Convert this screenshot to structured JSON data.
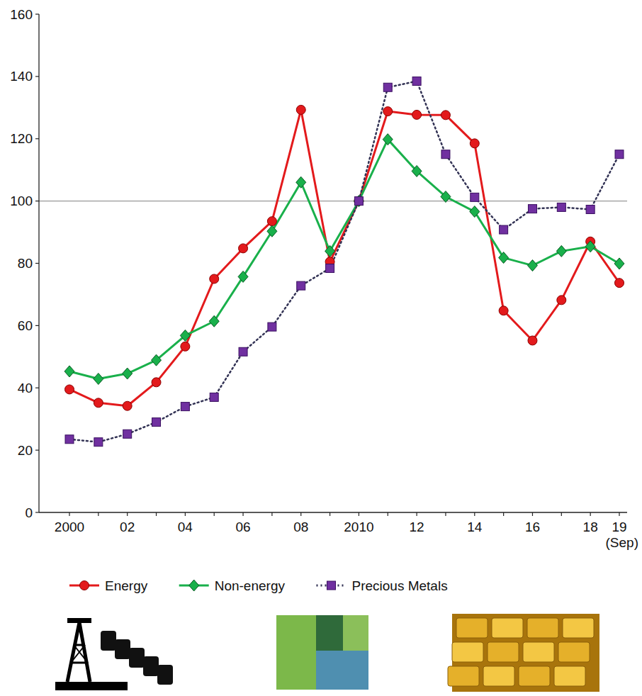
{
  "chart_data": {
    "type": "line",
    "categories": [
      "2000",
      null,
      "02",
      null,
      "04",
      null,
      "06",
      null,
      "08",
      null,
      "2010",
      null,
      "12",
      null,
      "14",
      null,
      "16",
      null,
      "18",
      "19 (Sep)"
    ],
    "series": [
      {
        "name": "Energy",
        "color": "#e31a1c",
        "marker": "circle",
        "line_style": "solid",
        "values": [
          39.5,
          35.2,
          34.2,
          41.8,
          53.3,
          75,
          84.8,
          93.5,
          129.3,
          80.5,
          100,
          128.8,
          127.7,
          127.6,
          118.5,
          64.8,
          55.2,
          68.2,
          87,
          73.7
        ]
      },
      {
        "name": "Non-energy",
        "color": "#19b04b",
        "marker": "diamond",
        "line_style": "solid",
        "values": [
          45.3,
          42.9,
          44.6,
          48.9,
          56.8,
          61.4,
          75.7,
          90.3,
          106,
          83.9,
          100,
          119.8,
          109.6,
          101.4,
          96.6,
          81.8,
          79.3,
          83.9,
          85.4,
          79.9
        ]
      },
      {
        "name": "Precious Metals",
        "color": "#7030a0",
        "marker": "square",
        "line_style": "dotted",
        "values": [
          23.5,
          22.6,
          25.2,
          29,
          34,
          37,
          51.6,
          59.6,
          72.8,
          78.4,
          100,
          136.5,
          138.5,
          115,
          101.2,
          90.8,
          97.5,
          98,
          97.3,
          115
        ]
      }
    ],
    "baseline": 100,
    "ylim": [
      0,
      160
    ],
    "yticks": [
      0,
      20,
      40,
      60,
      80,
      100,
      120,
      140,
      160
    ],
    "grid": false,
    "legend": "bottom"
  }
}
